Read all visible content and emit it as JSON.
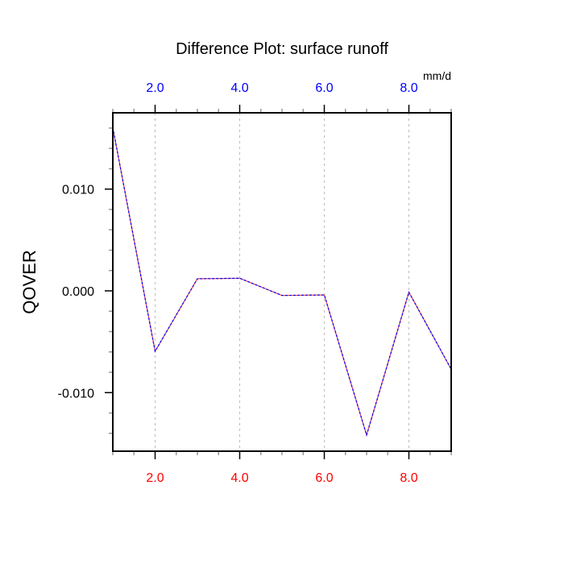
{
  "chart_data": {
    "type": "line",
    "title": "Difference Plot: surface runoff",
    "ylabel": "QOVER",
    "units": "mm/d",
    "xlim": [
      1,
      9
    ],
    "ylim": [
      -0.0158,
      0.0175
    ],
    "grid": "vertical dashed at major x ticks",
    "x_ticks": [
      2,
      4,
      6,
      8
    ],
    "x_tick_labels": [
      "2.0",
      "4.0",
      "6.0",
      "8.0"
    ],
    "y_ticks": [
      -0.01,
      0,
      0.01
    ],
    "y_tick_labels": [
      "-0.010",
      "0.000",
      "0.010"
    ],
    "x": [
      1,
      2,
      3,
      4,
      5,
      6,
      7,
      8,
      9
    ],
    "series": [
      {
        "name": "red-solid",
        "color": "#ff0000",
        "values": [
          0.01605,
          -0.00594,
          0.00119,
          0.00124,
          -0.00045,
          -0.0004,
          -0.01417,
          -0.00013,
          -0.0077
        ]
      },
      {
        "name": "blue-dashed",
        "color": "#0000ff",
        "values": [
          0.01605,
          -0.00594,
          0.00119,
          0.00124,
          -0.00045,
          -0.0004,
          -0.01417,
          -0.00013,
          -0.0077
        ]
      }
    ],
    "top_axis_color": "#0000ff",
    "bottom_axis_color": "#ff0000"
  }
}
